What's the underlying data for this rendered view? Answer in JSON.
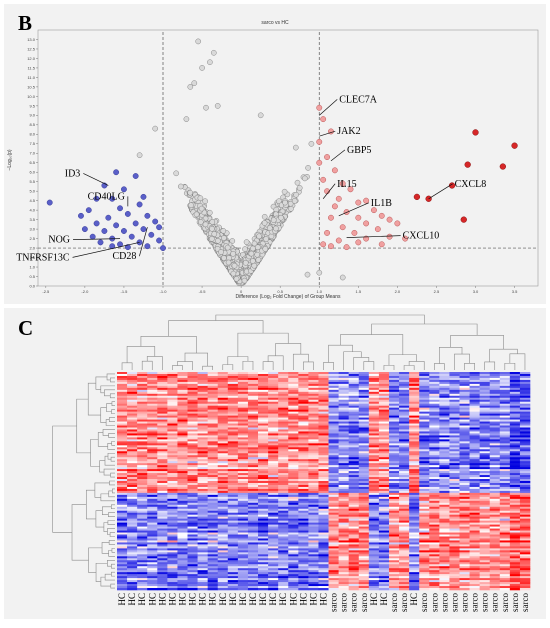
{
  "panels": {
    "b": {
      "letter": "B"
    },
    "c": {
      "letter": "C"
    }
  },
  "colors": {
    "panel_bg": "#f2f2f2",
    "down": "#5a5fc8",
    "down_edge": "#3a3f9a",
    "neutral": "#d9d9d9",
    "neutral_edge": "#7a7a7a",
    "up_light": "#f0a0a0",
    "up_strong": "#d62728",
    "heat_low": "#0000e0",
    "heat_mid": "#ffffff",
    "heat_high": "#ff0000"
  },
  "chart_data": [
    {
      "type": "scatter",
      "title": "sarco vs HC",
      "xlabel": "Difference (Log₂ Fold Change) of Group Means",
      "ylabel": "−Log₁₀(p)",
      "xlim": [
        -2.6,
        3.8
      ],
      "ylim": [
        0,
        13.5
      ],
      "x_ticks": [
        -2.5,
        -2.0,
        -1.5,
        -1.0,
        -0.5,
        0,
        0.5,
        1.0,
        1.5,
        2.0,
        2.5,
        3.0,
        3.5
      ],
      "x_tick_labels": [
        "-2.5",
        "-2.0",
        "-1.5",
        "-1.0",
        "-0.5",
        "0",
        "0.5",
        "1.0",
        "1.5",
        "2.0",
        "2.5",
        "3.0",
        "3.5"
      ],
      "y_ticks": [
        0,
        0.5,
        1,
        1.5,
        2,
        2.5,
        3,
        3.5,
        4,
        4.5,
        5,
        5.5,
        6,
        6.5,
        7,
        7.5,
        8,
        8.5,
        9,
        9.5,
        10,
        10.5,
        11,
        11.5,
        12,
        12.5,
        13
      ],
      "y_tick_labels": [
        "0.0",
        "0.5",
        "1.0",
        "1.5",
        "2.0",
        "2.5",
        "3.0",
        "3.5",
        "4.0",
        "4.5",
        "5.0",
        "5.5",
        "6.0",
        "6.5",
        "7.0",
        "7.5",
        "8.0",
        "8.5",
        "9.0",
        "9.5",
        "10.0",
        "10.5",
        "11.0",
        "11.5",
        "12.0",
        "12.5",
        "13.0"
      ],
      "thresholds": {
        "fold_change": [
          -1.0,
          1.0
        ],
        "neg_log10_p": 2.0
      },
      "grid": false,
      "legend": "none",
      "labeled_genes": [
        {
          "label": "CLEC7A",
          "x": 1.0,
          "y": 9.0,
          "group": "up"
        },
        {
          "label": "JAK2",
          "x": 1.0,
          "y": 7.9,
          "group": "up"
        },
        {
          "label": "GBP5",
          "x": 1.15,
          "y": 6.6,
          "group": "up"
        },
        {
          "label": "IL15",
          "x": 1.05,
          "y": 4.6,
          "group": "up"
        },
        {
          "label": "IL1B",
          "x": 1.25,
          "y": 3.7,
          "group": "up"
        },
        {
          "label": "CXCL10",
          "x": 1.35,
          "y": 2.55,
          "group": "up"
        },
        {
          "label": "CXCL8",
          "x": 2.4,
          "y": 4.6,
          "group": "up"
        },
        {
          "label": "ID3",
          "x": -1.7,
          "y": 5.3,
          "group": "down"
        },
        {
          "label": "CD40LG",
          "x": -1.45,
          "y": 4.2,
          "group": "down"
        },
        {
          "label": "NOG",
          "x": -1.55,
          "y": 2.5,
          "group": "down"
        },
        {
          "label": "TNFRSF13C",
          "x": -1.3,
          "y": 2.3,
          "group": "down"
        },
        {
          "label": "CD28",
          "x": -1.2,
          "y": 3.1,
          "group": "down"
        }
      ],
      "highlight_points": {
        "up": [
          [
            1.0,
            9.4
          ],
          [
            1.05,
            8.8
          ],
          [
            1.15,
            8.15
          ],
          [
            1.0,
            7.6
          ],
          [
            1.1,
            6.8
          ],
          [
            1.0,
            6.5
          ],
          [
            1.2,
            6.1
          ],
          [
            1.05,
            5.6
          ],
          [
            1.3,
            5.4
          ],
          [
            1.1,
            5.0
          ],
          [
            1.4,
            5.1
          ],
          [
            1.25,
            4.6
          ],
          [
            1.5,
            4.4
          ],
          [
            1.6,
            4.5
          ],
          [
            1.2,
            4.2
          ],
          [
            1.7,
            4.0
          ],
          [
            1.35,
            3.9
          ],
          [
            1.8,
            3.7
          ],
          [
            1.5,
            3.6
          ],
          [
            1.9,
            3.5
          ],
          [
            1.15,
            3.6
          ],
          [
            1.6,
            3.3
          ],
          [
            2.0,
            3.3
          ],
          [
            1.3,
            3.1
          ],
          [
            1.75,
            3.0
          ],
          [
            1.45,
            2.8
          ],
          [
            1.1,
            2.8
          ],
          [
            1.9,
            2.6
          ],
          [
            1.6,
            2.5
          ],
          [
            1.25,
            2.4
          ],
          [
            2.1,
            2.5
          ],
          [
            1.05,
            2.2
          ],
          [
            1.5,
            2.3
          ],
          [
            1.8,
            2.2
          ],
          [
            1.15,
            2.1
          ],
          [
            1.35,
            2.05
          ]
        ],
        "up_strong": [
          [
            3.0,
            8.1
          ],
          [
            3.5,
            7.4
          ],
          [
            2.9,
            6.4
          ],
          [
            3.35,
            6.3
          ],
          [
            2.7,
            5.3
          ],
          [
            2.25,
            4.7
          ],
          [
            2.4,
            4.6
          ],
          [
            2.85,
            3.5
          ]
        ],
        "down": [
          [
            -2.45,
            4.4
          ],
          [
            -1.6,
            6.0
          ],
          [
            -1.35,
            5.8
          ],
          [
            -1.75,
            5.3
          ],
          [
            -1.5,
            5.1
          ],
          [
            -1.85,
            4.6
          ],
          [
            -1.65,
            4.6
          ],
          [
            -1.25,
            4.7
          ],
          [
            -1.95,
            4.0
          ],
          [
            -1.55,
            4.1
          ],
          [
            -1.3,
            4.3
          ],
          [
            -2.05,
            3.7
          ],
          [
            -1.7,
            3.6
          ],
          [
            -1.45,
            3.8
          ],
          [
            -1.2,
            3.7
          ],
          [
            -1.85,
            3.3
          ],
          [
            -1.6,
            3.2
          ],
          [
            -1.35,
            3.3
          ],
          [
            -1.1,
            3.4
          ],
          [
            -2.0,
            3.0
          ],
          [
            -1.75,
            2.9
          ],
          [
            -1.5,
            2.9
          ],
          [
            -1.25,
            3.0
          ],
          [
            -1.05,
            3.1
          ],
          [
            -1.9,
            2.6
          ],
          [
            -1.65,
            2.5
          ],
          [
            -1.4,
            2.6
          ],
          [
            -1.15,
            2.7
          ],
          [
            -1.8,
            2.3
          ],
          [
            -1.55,
            2.2
          ],
          [
            -1.3,
            2.3
          ],
          [
            -1.05,
            2.4
          ],
          [
            -1.45,
            2.05
          ],
          [
            -1.2,
            2.1
          ],
          [
            -1.65,
            2.1
          ],
          [
            -1.0,
            2.0
          ]
        ]
      }
    },
    {
      "type": "heatmap",
      "column_labels": [
        "HC",
        "HC",
        "HC",
        "HC",
        "HC",
        "HC",
        "HC",
        "HC",
        "HC",
        "HC",
        "HC",
        "HC",
        "HC",
        "HC",
        "HC",
        "HC",
        "HC",
        "HC",
        "HC",
        "HC",
        "HC",
        "sarco",
        "sarco",
        "sarco",
        "sarco",
        "HC",
        "HC",
        "sarco",
        "sarco",
        "HC",
        "sarco",
        "sarco",
        "sarco",
        "sarco",
        "sarco",
        "sarco",
        "sarco",
        "sarco",
        "sarco",
        "sarco",
        "sarco"
      ],
      "color_scale": [
        "low",
        "mid",
        "high"
      ],
      "row_dendrogram": true,
      "column_dendrogram": true,
      "legend": "none"
    }
  ]
}
